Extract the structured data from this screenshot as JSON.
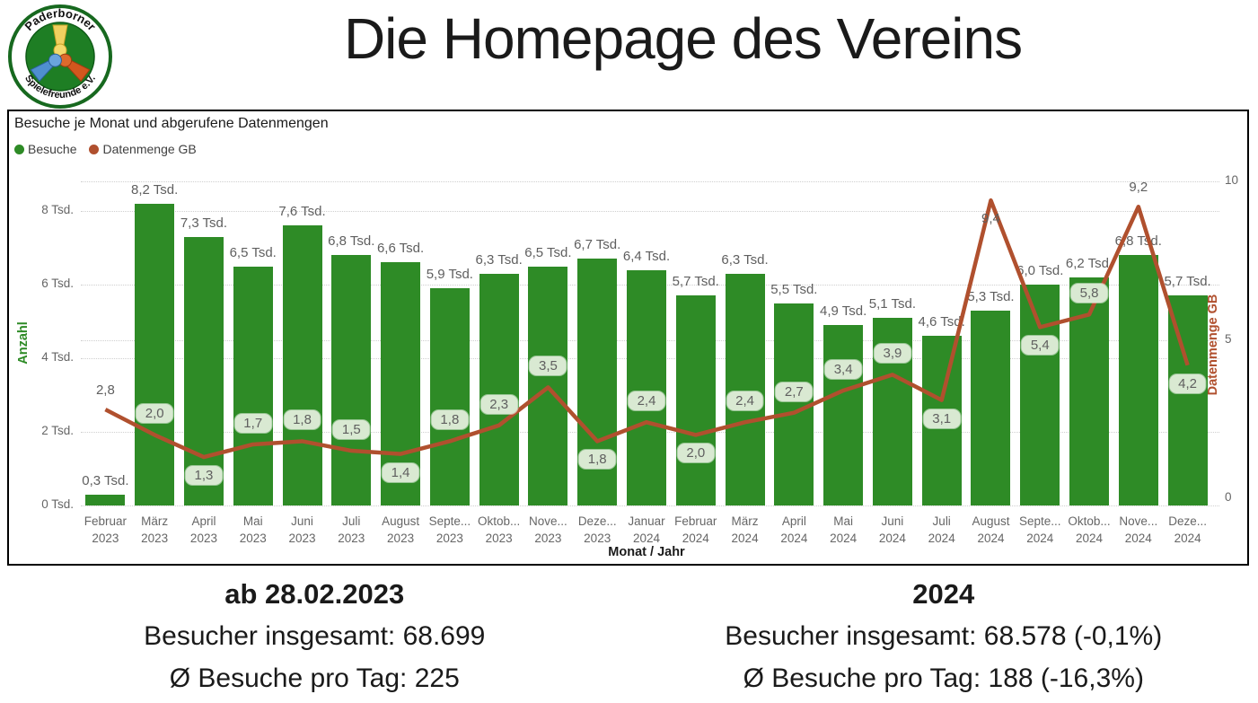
{
  "logo": {
    "top_text": "Paderborner",
    "bottom_text": "Spielefreunde e.V."
  },
  "page_title": "Die Homepage des Vereins",
  "chart": {
    "title": "Besuche je Monat und abgerufene Datenmengen",
    "legend": [
      {
        "label": "Besuche",
        "color": "#2e8b26"
      },
      {
        "label": "Datenmenge GB",
        "color": "#b0502e"
      }
    ],
    "x_axis_title": "Monat / Jahr",
    "y_left": {
      "title": "Anzahl",
      "color": "#2e8b26",
      "ticks": [
        {
          "v": 0,
          "label": "0 Tsd."
        },
        {
          "v": 2,
          "label": "2 Tsd."
        },
        {
          "v": 4,
          "label": "4 Tsd."
        },
        {
          "v": 6,
          "label": "6 Tsd."
        },
        {
          "v": 8,
          "label": "8 Tsd."
        }
      ]
    },
    "y_right": {
      "title": "Datenmenge GB",
      "color": "#b0502e",
      "ticks": [
        {
          "v": 0,
          "label": "0"
        },
        {
          "v": 5,
          "label": "5"
        },
        {
          "v": 10,
          "label": "10"
        }
      ]
    }
  },
  "chart_data": {
    "type": "combo_bar_line",
    "title": "Besuche je Monat und abgerufene Datenmengen",
    "xlabel": "Monat / Jahr",
    "ylabel_left": "Anzahl",
    "ylabel_right": "Datenmenge GB",
    "ylim_left_tsd": [
      0,
      8.5
    ],
    "ylim_right_gb": [
      0,
      10
    ],
    "grid": "dotted-horizontal",
    "legend_position": "top-left",
    "categories": {
      "months": [
        "Februar",
        "März",
        "April",
        "Mai",
        "Juni",
        "Juli",
        "August",
        "Septe...",
        "Oktob...",
        "Nove...",
        "Deze...",
        "Januar",
        "Februar",
        "März",
        "April",
        "Mai",
        "Juni",
        "Juli",
        "August",
        "Septe...",
        "Oktob...",
        "Nove...",
        "Deze..."
      ],
      "years": [
        "2023",
        "2023",
        "2023",
        "2023",
        "2023",
        "2023",
        "2023",
        "2023",
        "2023",
        "2023",
        "2023",
        "2024",
        "2024",
        "2024",
        "2024",
        "2024",
        "2024",
        "2024",
        "2024",
        "2024",
        "2024",
        "2024",
        "2024"
      ]
    },
    "series": [
      {
        "name": "Besuche",
        "kind": "bar",
        "axis": "left",
        "unit": "Tsd.",
        "color": "#2e8b26",
        "values": [
          0.3,
          8.2,
          7.3,
          6.5,
          7.6,
          6.8,
          6.6,
          5.9,
          6.3,
          6.5,
          6.7,
          6.4,
          5.7,
          6.3,
          5.5,
          4.9,
          5.1,
          4.6,
          5.3,
          6.0,
          6.2,
          6.8,
          5.7
        ]
      },
      {
        "name": "Datenmenge GB",
        "kind": "line",
        "axis": "right",
        "unit": "GB",
        "color": "#b0502e",
        "values": [
          2.8,
          2.0,
          1.3,
          1.7,
          1.8,
          1.5,
          1.4,
          1.8,
          2.3,
          3.5,
          1.8,
          2.4,
          2.0,
          2.4,
          2.7,
          3.4,
          3.9,
          3.1,
          9.4,
          5.4,
          5.8,
          9.2,
          4.2
        ],
        "label_pos": [
          "above",
          "above",
          "below",
          "above",
          "above",
          "above",
          "below",
          "above",
          "above",
          "above",
          "below",
          "above",
          "below",
          "above",
          "above",
          "above",
          "above",
          "below",
          "below",
          "below",
          "above",
          "above",
          "below"
        ],
        "label_pill": [
          false,
          true,
          true,
          true,
          true,
          true,
          true,
          true,
          true,
          true,
          true,
          true,
          true,
          true,
          true,
          true,
          true,
          true,
          false,
          true,
          true,
          false,
          true
        ]
      }
    ]
  },
  "summary": {
    "left": {
      "header": "ab 28.02.2023",
      "line1": "Besucher insgesamt: 68.699",
      "line2": "Ø Besuche pro Tag: 225"
    },
    "right": {
      "header": "2024",
      "line1": "Besucher insgesamt: 68.578 (-0,1%)",
      "line2": "Ø Besuche pro Tag: 188 (-16,3%)"
    }
  }
}
